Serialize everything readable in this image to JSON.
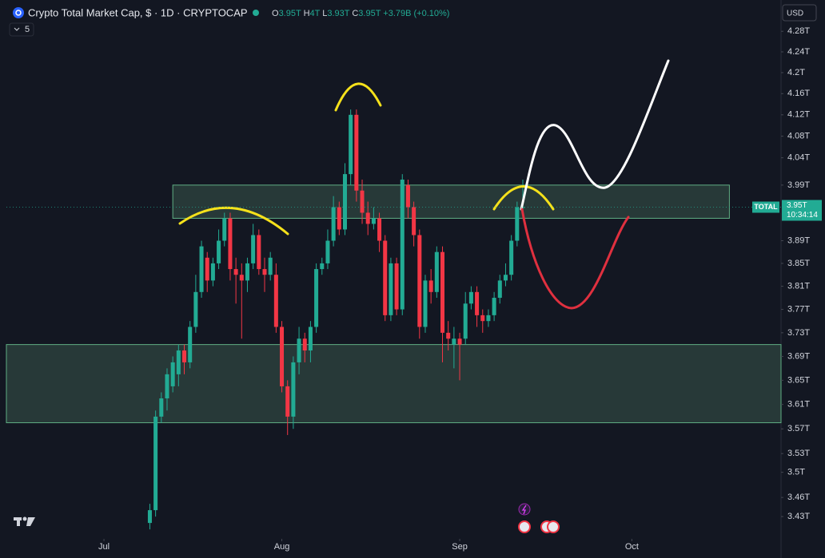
{
  "chart_data": {
    "type": "candlestick",
    "title": "Crypto Total Market Cap, $ · 1D · CRYPTOCAP",
    "legend_values": [
      {
        "label": "O",
        "value": "3.95T"
      },
      {
        "label": "H",
        "value": "4T"
      },
      {
        "label": "L",
        "value": "3.93T"
      },
      {
        "label": "C",
        "value": "3.95T"
      }
    ],
    "change": "+3.79B (+0.10%)",
    "indicators": "5",
    "currency": "USD",
    "last_price": {
      "symbol": "TOTAL",
      "price": "3.95T",
      "countdown": "10:34:14"
    },
    "log_scale": true,
    "up_color": "#22ab94",
    "down_color": "#f23645",
    "open": [
      3.42,
      3.44,
      3.59,
      3.62,
      3.64,
      3.66,
      3.7,
      3.68,
      3.74,
      3.8,
      3.86,
      3.82,
      3.85,
      3.89,
      3.93,
      3.84,
      3.83,
      3.82,
      3.85,
      3.9,
      3.84,
      3.83,
      3.83,
      3.74,
      3.64,
      3.59,
      3.68,
      3.72,
      3.7,
      3.74,
      3.84,
      3.85,
      3.89,
      3.95,
      3.91,
      4.01,
      4.12,
      3.98,
      3.94,
      3.92,
      3.93,
      3.89,
      3.76,
      3.85,
      3.77,
      3.99,
      3.95,
      3.9,
      3.74,
      3.82,
      3.8,
      3.87,
      3.73,
      3.71,
      3.72,
      3.72,
      3.78,
      3.8,
      3.76,
      3.75,
      3.76,
      3.79,
      3.82,
      3.83,
      3.89,
      3.95
    ],
    "high": [
      3.45,
      3.6,
      3.63,
      3.67,
      3.69,
      3.71,
      3.71,
      3.75,
      3.83,
      3.89,
      3.87,
      3.86,
      3.91,
      3.94,
      3.94,
      3.86,
      3.85,
      3.86,
      3.92,
      3.91,
      3.86,
      3.87,
      3.85,
      3.75,
      3.65,
      3.69,
      3.74,
      3.73,
      3.75,
      3.85,
      3.86,
      3.91,
      3.97,
      3.96,
      4.03,
      4.13,
      4.13,
      4.0,
      3.96,
      3.95,
      3.94,
      3.9,
      3.86,
      3.86,
      4.01,
      4.0,
      3.96,
      3.91,
      3.83,
      3.84,
      3.88,
      3.88,
      3.75,
      3.74,
      3.73,
      3.8,
      3.81,
      3.81,
      3.77,
      3.77,
      3.8,
      3.83,
      3.85,
      3.9,
      3.96,
      4.0
    ],
    "low": [
      3.41,
      3.43,
      3.58,
      3.6,
      3.63,
      3.64,
      3.66,
      3.67,
      3.73,
      3.79,
      3.8,
      3.81,
      3.84,
      3.88,
      3.82,
      3.78,
      3.72,
      3.8,
      3.84,
      3.83,
      3.8,
      3.82,
      3.73,
      3.63,
      3.56,
      3.57,
      3.66,
      3.68,
      3.68,
      3.73,
      3.83,
      3.84,
      3.88,
      3.9,
      3.9,
      3.99,
      3.96,
      3.92,
      3.9,
      3.91,
      3.87,
      3.75,
      3.75,
      3.76,
      3.76,
      3.93,
      3.88,
      3.72,
      3.73,
      3.78,
      3.79,
      3.68,
      3.7,
      3.67,
      3.65,
      3.71,
      3.77,
      3.74,
      3.73,
      3.74,
      3.75,
      3.78,
      3.81,
      3.82,
      3.88,
      3.93
    ],
    "close": [
      3.44,
      3.59,
      3.62,
      3.66,
      3.68,
      3.7,
      3.68,
      3.74,
      3.8,
      3.88,
      3.82,
      3.85,
      3.89,
      3.93,
      3.84,
      3.83,
      3.82,
      3.85,
      3.9,
      3.84,
      3.83,
      3.86,
      3.74,
      3.64,
      3.59,
      3.68,
      3.72,
      3.7,
      3.74,
      3.84,
      3.85,
      3.89,
      3.95,
      3.91,
      4.01,
      4.12,
      3.98,
      3.94,
      3.92,
      3.93,
      3.89,
      3.76,
      3.85,
      3.77,
      4.0,
      3.95,
      3.9,
      3.74,
      3.82,
      3.8,
      3.87,
      3.73,
      3.72,
      3.72,
      3.71,
      3.78,
      3.8,
      3.76,
      3.75,
      3.76,
      3.79,
      3.82,
      3.83,
      3.89,
      3.95,
      3.95
    ],
    "zones": [
      {
        "top": 3.99,
        "bottom": 3.93,
        "x_start": 4,
        "x_end": 101
      },
      {
        "top": 3.71,
        "bottom": 3.58,
        "x_start": -25,
        "x_end": 110
      }
    ],
    "xlim": [
      -25,
      110
    ],
    "xticks": [
      {
        "value": -8,
        "label": "Jul"
      },
      {
        "value": 23,
        "label": "Aug"
      },
      {
        "value": 54,
        "label": "Sep"
      },
      {
        "value": 84,
        "label": "Oct"
      }
    ],
    "ylim": [
      3.4,
      4.3
    ],
    "yticks": [
      {
        "value": 4.28,
        "label": "4.28T"
      },
      {
        "value": 4.24,
        "label": "4.24T"
      },
      {
        "value": 4.2,
        "label": "4.2T"
      },
      {
        "value": 4.16,
        "label": "4.16T"
      },
      {
        "value": 4.12,
        "label": "4.12T"
      },
      {
        "value": 4.08,
        "label": "4.08T"
      },
      {
        "value": 4.04,
        "label": "4.04T"
      },
      {
        "value": 3.99,
        "label": "3.99T"
      },
      {
        "value": 3.89,
        "label": "3.89T"
      },
      {
        "value": 3.85,
        "label": "3.85T"
      },
      {
        "value": 3.81,
        "label": "3.81T"
      },
      {
        "value": 3.77,
        "label": "3.77T"
      },
      {
        "value": 3.73,
        "label": "3.73T"
      },
      {
        "value": 3.69,
        "label": "3.69T"
      },
      {
        "value": 3.65,
        "label": "3.65T"
      },
      {
        "value": 3.61,
        "label": "3.61T"
      },
      {
        "value": 3.57,
        "label": "3.57T"
      },
      {
        "value": 3.53,
        "label": "3.53T"
      },
      {
        "value": 3.5,
        "label": "3.5T"
      },
      {
        "value": 3.46,
        "label": "3.46T"
      },
      {
        "value": 3.43,
        "label": "3.43T"
      }
    ]
  }
}
